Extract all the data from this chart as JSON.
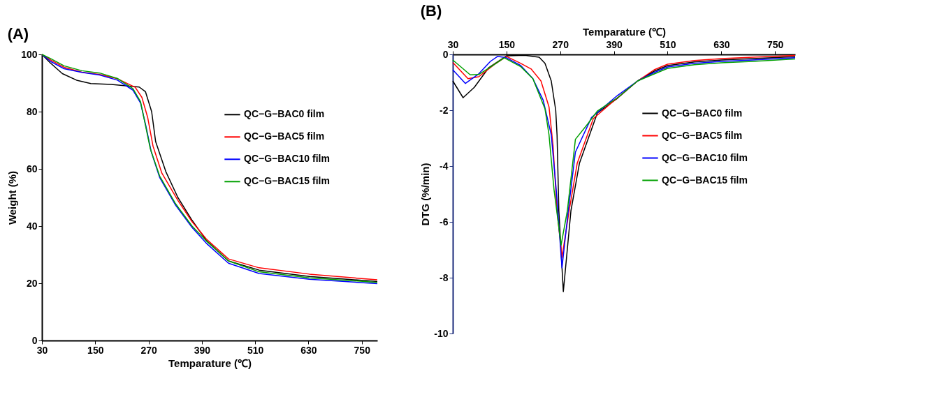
{
  "chart_data": [
    {
      "type": "line",
      "title": "(A)",
      "xlabel": "Temparature (℃)",
      "ylabel": "Weight (%)",
      "xlim": [
        30,
        785
      ],
      "xticks": [
        30,
        150,
        270,
        390,
        510,
        630,
        750
      ],
      "ylim": [
        0,
        100
      ],
      "yticks": [
        0,
        20,
        40,
        60,
        80,
        100
      ],
      "grid": false,
      "legend": "right",
      "marker": "none",
      "line_style": "solid",
      "series": [
        {
          "name": "QC−G−BAC0  film",
          "color": "#000000",
          "x": [
            30,
            49,
            76,
            108,
            140,
            186,
            249,
            263,
            277,
            286,
            309,
            336,
            368,
            400,
            450,
            519,
            632,
            785
          ],
          "values": [
            100,
            97,
            93.3,
            91,
            89.8,
            89.5,
            88.6,
            87,
            80,
            69.5,
            59,
            50,
            42,
            35,
            27.8,
            24.6,
            22.4,
            20.6
          ]
        },
        {
          "name": "QC−G−BAC5  film",
          "color": "#ff0000",
          "x": [
            30,
            50,
            80,
            120,
            160,
            200,
            240,
            255,
            268,
            280,
            300,
            336,
            368,
            400,
            450,
            519,
            632,
            785
          ],
          "values": [
            100,
            98,
            95.5,
            93.8,
            93,
            91.5,
            88.5,
            85,
            78,
            68,
            58.5,
            49,
            41.5,
            35.5,
            28.5,
            25.4,
            23.2,
            21.2
          ]
        },
        {
          "name": "QC−G−BAC10  film",
          "color": "#0000ff",
          "x": [
            30,
            50,
            80,
            120,
            160,
            200,
            235,
            252,
            264,
            276,
            295,
            330,
            368,
            400,
            450,
            519,
            632,
            785
          ],
          "values": [
            100,
            97.5,
            95,
            93.7,
            92.8,
            91,
            87.5,
            83,
            75,
            66,
            57,
            47.5,
            39.5,
            34,
            27,
            23.4,
            21.4,
            19.9
          ]
        },
        {
          "name": "QC−G−BAC15  film",
          "color": "#00a000",
          "x": [
            30,
            50,
            80,
            120,
            160,
            200,
            235,
            252,
            262,
            274,
            295,
            330,
            368,
            400,
            450,
            519,
            632,
            785
          ],
          "values": [
            100,
            98.5,
            96,
            94.3,
            93.5,
            91.6,
            88,
            83.5,
            76,
            67,
            57.5,
            48,
            40,
            34.8,
            27.8,
            24.0,
            21.9,
            20.3
          ]
        }
      ]
    },
    {
      "type": "line",
      "title": "(B)",
      "xlabel": "Temparature (℃)",
      "ylabel": "DTG (%/min)",
      "xlim": [
        30,
        795
      ],
      "xticks": [
        30,
        150,
        270,
        390,
        510,
        630,
        750
      ],
      "ylim": [
        -10,
        0
      ],
      "yticks": [
        0,
        -2,
        -4,
        -6,
        -8,
        -10
      ],
      "grid": false,
      "legend": "right",
      "marker": "none",
      "line_style": "solid",
      "series": [
        {
          "name": "QC−G−BAC0  film",
          "color": "#000000",
          "x": [
            30,
            53,
            78,
            110,
            150,
            191,
            223,
            236,
            250,
            260,
            263,
            267,
            277,
            294,
            313,
            353,
            398,
            443,
            480,
            510,
            570,
            630,
            700,
            795
          ],
          "values": [
            -0.95,
            -1.55,
            -1.18,
            -0.48,
            -0.05,
            -0.03,
            -0.1,
            -0.32,
            -0.95,
            -2.0,
            -2.9,
            -5.6,
            -8.5,
            -5.6,
            -3.9,
            -2.1,
            -1.57,
            -0.95,
            -0.6,
            -0.4,
            -0.27,
            -0.2,
            -0.15,
            -0.08
          ]
        },
        {
          "name": "QC−G−BAC5  film",
          "color": "#ff0000",
          "x": [
            30,
            64,
            88,
            123,
            150,
            182,
            205,
            227,
            245,
            254,
            263,
            274,
            290,
            308,
            344,
            398,
            443,
            480,
            510,
            570,
            630,
            700,
            795
          ],
          "values": [
            -0.29,
            -0.87,
            -0.8,
            -0.36,
            -0.07,
            -0.32,
            -0.52,
            -0.95,
            -1.88,
            -3.27,
            -5.6,
            -7.27,
            -5.6,
            -3.9,
            -2.3,
            -1.55,
            -0.95,
            -0.55,
            -0.35,
            -0.22,
            -0.15,
            -0.1,
            -0.04
          ]
        },
        {
          "name": "QC−G−BAC10  film",
          "color": "#0000ff",
          "x": [
            30,
            58,
            87,
            114,
            130,
            150,
            182,
            209,
            232,
            250,
            261,
            274,
            288,
            304,
            340,
            398,
            443,
            480,
            510,
            570,
            630,
            700,
            795
          ],
          "values": [
            -0.55,
            -1.04,
            -0.71,
            -0.25,
            -0.07,
            -0.12,
            -0.4,
            -0.87,
            -1.64,
            -2.88,
            -4.82,
            -7.65,
            -5.6,
            -3.5,
            -2.26,
            -1.47,
            -0.95,
            -0.65,
            -0.45,
            -0.32,
            -0.25,
            -0.2,
            -0.12
          ]
        },
        {
          "name": "QC−G−BAC15  film",
          "color": "#00a000",
          "x": [
            30,
            69,
            88,
            123,
            145,
            182,
            209,
            236,
            245,
            256,
            272,
            286,
            304,
            331,
            353,
            398,
            443,
            480,
            510,
            570,
            630,
            700,
            795
          ],
          "values": [
            -0.2,
            -0.73,
            -0.72,
            -0.36,
            -0.12,
            -0.44,
            -0.87,
            -1.95,
            -2.88,
            -4.82,
            -6.83,
            -5.6,
            -3.04,
            -2.5,
            -2.03,
            -1.55,
            -0.95,
            -0.7,
            -0.5,
            -0.37,
            -0.3,
            -0.25,
            -0.16
          ]
        }
      ]
    }
  ]
}
